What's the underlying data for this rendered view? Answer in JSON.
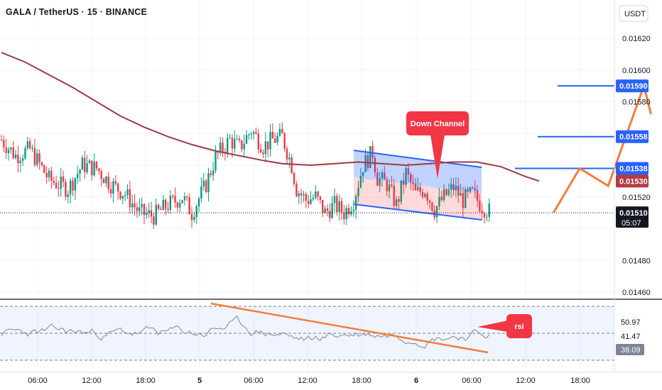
{
  "header": {
    "title": "GALA / TetherUS · 15 · BINANCE",
    "currency_button": "USDT"
  },
  "chart_data": {
    "type": "candlestick",
    "symbol": "GALA / TetherUS",
    "interval": "15",
    "exchange": "BINANCE",
    "price_axis": {
      "ticks": [
        "0.01620",
        "0.01600",
        "0.01580",
        "0.01520",
        "0.01480",
        "0.01460"
      ],
      "range": [
        0.01455,
        0.01638
      ]
    },
    "time_axis": {
      "ticks": [
        "06:00",
        "12:00",
        "18:00",
        "5",
        "06:00",
        "12:00",
        "18:00",
        "6",
        "06:00",
        "12:00",
        "18:00"
      ]
    },
    "price_labels": [
      {
        "value": "0.01590",
        "color": "#2962ff"
      },
      {
        "value": "0.01558",
        "color": "#2962ff"
      },
      {
        "value": "0.01538",
        "color": "#2962ff"
      },
      {
        "value": "0.01530",
        "color": "#b23b44"
      },
      {
        "value": "0.01510",
        "color": "#131722"
      }
    ],
    "countdown": "05:07",
    "target_levels": [
      0.0159,
      0.01558,
      0.01538
    ],
    "moving_average_last": 0.0153,
    "last_price": 0.0151,
    "annotations": {
      "channel": "Down Channel",
      "rsi_callout": "rsi"
    },
    "rsi": {
      "ticks": [
        "50.97",
        "41.47"
      ],
      "current": "38.09"
    },
    "series": {
      "ma_points": [
        [
          0,
          0.01611
        ],
        [
          10,
          0.01605
        ],
        [
          20,
          0.01597
        ],
        [
          30,
          0.01589
        ],
        [
          40,
          0.0158
        ],
        [
          50,
          0.01571
        ],
        [
          60,
          0.01564
        ],
        [
          70,
          0.01558
        ],
        [
          80,
          0.01553
        ],
        [
          90,
          0.01549
        ],
        [
          100,
          0.01546
        ],
        [
          110,
          0.01543
        ],
        [
          118,
          0.01541
        ],
        [
          130,
          0.0154
        ],
        [
          140,
          0.01541
        ],
        [
          150,
          0.01542
        ],
        [
          160,
          0.01541
        ],
        [
          170,
          0.0154
        ],
        [
          180,
          0.01541
        ],
        [
          190,
          0.01542
        ],
        [
          200,
          0.01542
        ],
        [
          210,
          0.01539
        ],
        [
          215,
          0.01536
        ],
        [
          220,
          0.01533
        ],
        [
          226,
          0.0153
        ]
      ],
      "projection": [
        [
          232,
          0.0151
        ],
        [
          243,
          0.01538
        ],
        [
          255,
          0.01527
        ],
        [
          270,
          0.0159
        ],
        [
          273,
          0.01582
        ]
      ]
    }
  }
}
